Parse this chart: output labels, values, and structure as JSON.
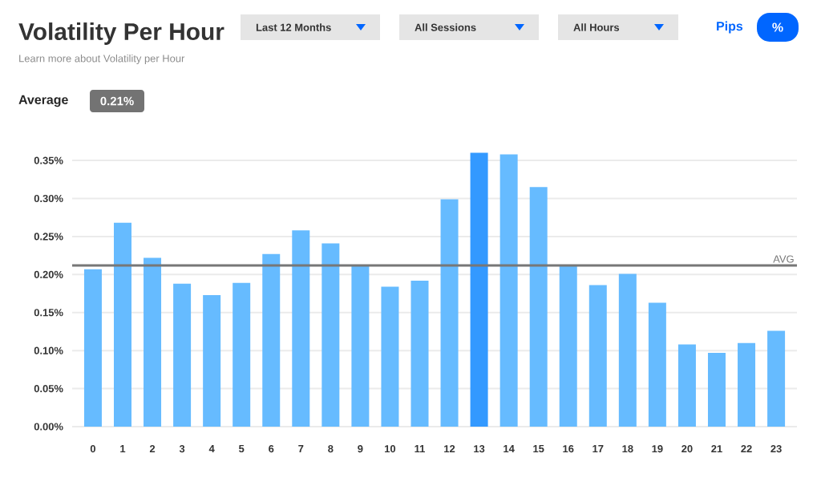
{
  "chart_data": {
    "type": "bar",
    "title": "Volatility Per Hour",
    "subtitle": "Learn more about Volatility per Hour",
    "categories": [
      "0",
      "1",
      "2",
      "3",
      "4",
      "5",
      "6",
      "7",
      "8",
      "9",
      "10",
      "11",
      "12",
      "13",
      "14",
      "15",
      "16",
      "17",
      "18",
      "19",
      "20",
      "21",
      "22",
      "23"
    ],
    "values": [
      0.207,
      0.268,
      0.222,
      0.188,
      0.173,
      0.189,
      0.227,
      0.258,
      0.241,
      0.213,
      0.184,
      0.192,
      0.299,
      0.36,
      0.358,
      0.315,
      0.211,
      0.186,
      0.201,
      0.163,
      0.108,
      0.097,
      0.11,
      0.126
    ],
    "colors": [
      "#66bbff",
      "#66bbff",
      "#66bbff",
      "#66bbff",
      "#66bbff",
      "#66bbff",
      "#66bbff",
      "#66bbff",
      "#66bbff",
      "#66bbff",
      "#66bbff",
      "#66bbff",
      "#66bbff",
      "#3399ff",
      "#66bbff",
      "#66bbff",
      "#66bbff",
      "#66bbff",
      "#66bbff",
      "#66bbff",
      "#66bbff",
      "#66bbff",
      "#66bbff",
      "#66bbff"
    ],
    "ylim": [
      0,
      0.36
    ],
    "yticks": [
      {
        "value": 0,
        "label": "0.00%"
      },
      {
        "value": 0.05,
        "label": "0.05%"
      },
      {
        "value": 0.1,
        "label": "0.10%"
      },
      {
        "value": 0.15,
        "label": "0.15%"
      },
      {
        "value": 0.2,
        "label": "0.20%"
      },
      {
        "value": 0.25,
        "label": "0.25%"
      },
      {
        "value": 0.3,
        "label": "0.30%"
      },
      {
        "value": 0.35,
        "label": "0.35%"
      }
    ],
    "grid": "y",
    "ref_lines": [
      {
        "axis": "y",
        "value": 0.212,
        "label": "AVG",
        "color": "#777777"
      }
    ],
    "annotations": [
      "Last 12 Months",
      "All Sessions",
      "All Hours",
      "Pips",
      "%",
      "Average",
      "0.21%"
    ]
  }
}
